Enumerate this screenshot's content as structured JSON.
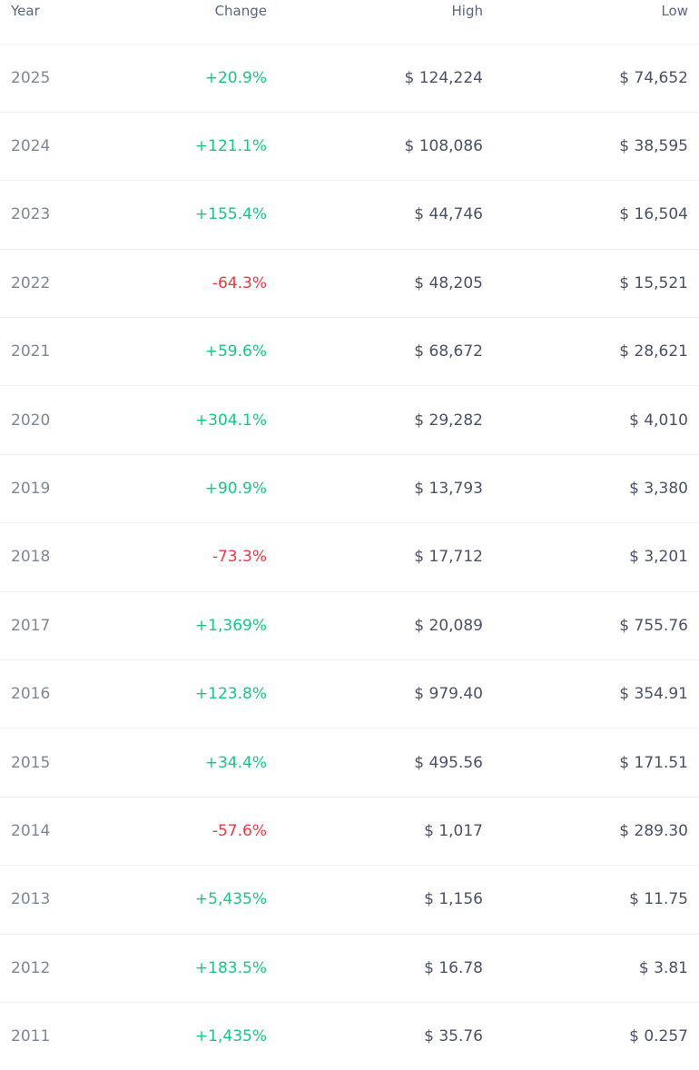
{
  "table": {
    "headers": {
      "year": "Year",
      "change": "Change",
      "high": "High",
      "low": "Low"
    },
    "colors": {
      "positive": "#16c784",
      "negative": "#ea3943"
    },
    "rows": [
      {
        "year": "2025",
        "change": "+20.9%",
        "high": "$ 124,224",
        "low": "$ 74,652"
      },
      {
        "year": "2024",
        "change": "+121.1%",
        "high": "$ 108,086",
        "low": "$ 38,595"
      },
      {
        "year": "2023",
        "change": "+155.4%",
        "high": "$ 44,746",
        "low": "$ 16,504"
      },
      {
        "year": "2022",
        "change": "-64.3%",
        "high": "$ 48,205",
        "low": "$ 15,521"
      },
      {
        "year": "2021",
        "change": "+59.6%",
        "high": "$ 68,672",
        "low": "$ 28,621"
      },
      {
        "year": "2020",
        "change": "+304.1%",
        "high": "$ 29,282",
        "low": "$ 4,010"
      },
      {
        "year": "2019",
        "change": "+90.9%",
        "high": "$ 13,793",
        "low": "$ 3,380"
      },
      {
        "year": "2018",
        "change": "-73.3%",
        "high": "$ 17,712",
        "low": "$ 3,201"
      },
      {
        "year": "2017",
        "change": "+1,369%",
        "high": "$ 20,089",
        "low": "$ 755.76"
      },
      {
        "year": "2016",
        "change": "+123.8%",
        "high": "$ 979.40",
        "low": "$ 354.91"
      },
      {
        "year": "2015",
        "change": "+34.4%",
        "high": "$ 495.56",
        "low": "$ 171.51"
      },
      {
        "year": "2014",
        "change": "-57.6%",
        "high": "$ 1,017",
        "low": "$ 289.30"
      },
      {
        "year": "2013",
        "change": "+5,435%",
        "high": "$ 1,156",
        "low": "$ 11.75"
      },
      {
        "year": "2012",
        "change": "+183.5%",
        "high": "$ 16.78",
        "low": "$ 3.81"
      },
      {
        "year": "2011",
        "change": "+1,435%",
        "high": "$ 35.76",
        "low": "$ 0.257"
      }
    ]
  }
}
